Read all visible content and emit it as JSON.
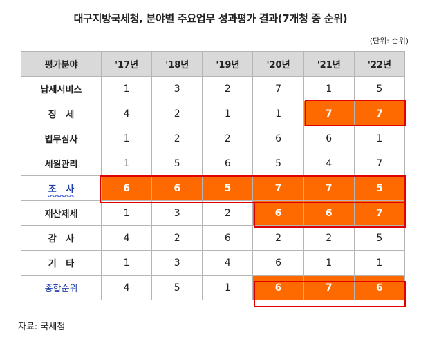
{
  "title": "대구지방국세청, 분야별 주요업무 성과평가 결과(7개청 중 순위)",
  "unit": "(단위: 순위)",
  "table": {
    "header": [
      "평가분야",
      "'17년",
      "'18년",
      "'19년",
      "'20년",
      "'21년",
      "'22년"
    ],
    "rows": [
      {
        "label": "납세서비스",
        "values": [
          "1",
          "3",
          "2",
          "7",
          "1",
          "5"
        ]
      },
      {
        "label": "징   세",
        "values": [
          "4",
          "2",
          "1",
          "1",
          "7",
          "7"
        ]
      },
      {
        "label": "법무심사",
        "values": [
          "1",
          "2",
          "2",
          "6",
          "6",
          "1"
        ]
      },
      {
        "label": "세원관리",
        "values": [
          "1",
          "5",
          "6",
          "5",
          "4",
          "7"
        ]
      },
      {
        "label": "조   사",
        "values": [
          "6",
          "6",
          "5",
          "7",
          "7",
          "5"
        ]
      },
      {
        "label": "재산제세",
        "values": [
          "1",
          "3",
          "2",
          "6",
          "6",
          "7"
        ]
      },
      {
        "label": "감   사",
        "values": [
          "4",
          "2",
          "6",
          "2",
          "2",
          "5"
        ]
      },
      {
        "label": "기   타",
        "values": [
          "1",
          "3",
          "4",
          "6",
          "1",
          "1"
        ]
      },
      {
        "label": "종합순위",
        "values": [
          "4",
          "5",
          "1",
          "6",
          "7",
          "6"
        ]
      }
    ]
  },
  "highlight_color": "#ff6a00",
  "frame_color": "#e00000",
  "label_blue": "#1f3fa8",
  "source": "자료: 국세청"
}
